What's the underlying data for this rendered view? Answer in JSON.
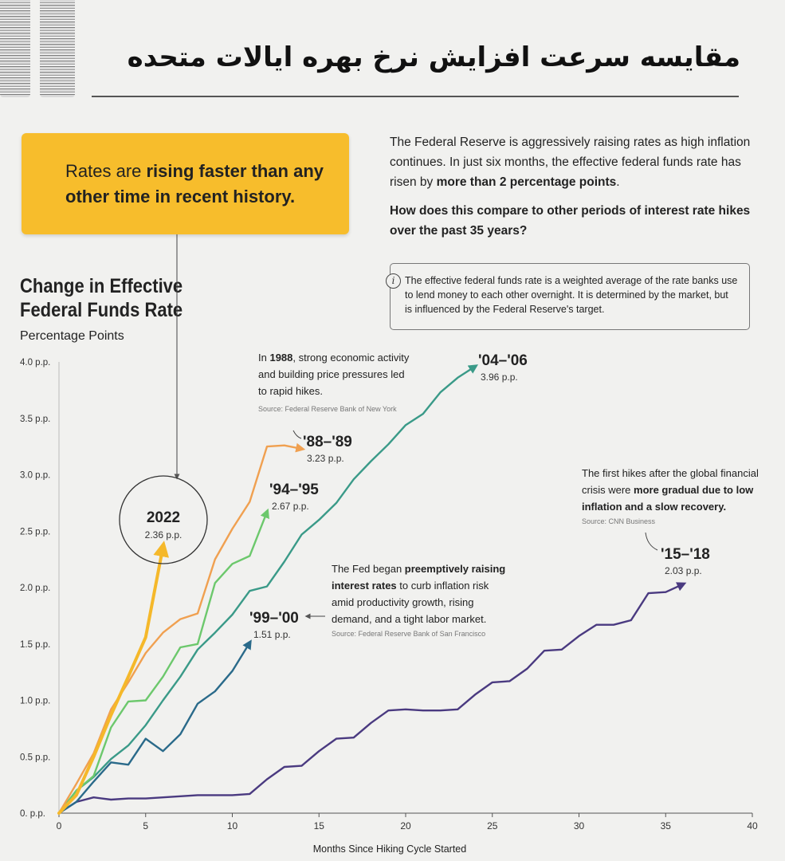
{
  "header": {
    "title_fa": "مقایسه سرعت افزایش نرخ بهره ایالات متحده"
  },
  "callout": {
    "part1": "Rates are ",
    "bold1": "rising faster than any",
    "bold2": "other time in recent history."
  },
  "intro": {
    "text1": "The Federal Reserve is aggressively raising rates as high inflation continues. In just six months, the effective federal funds rate has risen by ",
    "bold": "more than 2 percentage points",
    "text2": ".",
    "question": "How does this compare to other periods of interest rate hikes over the past 35 years?"
  },
  "info": {
    "icon": "info-icon",
    "text": "The effective federal funds rate is a weighted average of the rate banks use to lend money to each other overnight. It is determined by the market, but is influenced by the Federal Reserve's target."
  },
  "chart": {
    "title_line1": "Change in Effective",
    "title_line2": "Federal Funds Rate",
    "subtitle": "Percentage Points"
  },
  "chart_data": {
    "type": "line",
    "xlabel": "Months Since Hiking Cycle Started",
    "ylabel": "Percentage Points",
    "xlim": [
      0,
      40
    ],
    "ylim": [
      0,
      4
    ],
    "x_ticks": [
      0,
      5,
      10,
      15,
      20,
      25,
      30,
      35,
      40
    ],
    "y_ticks": [
      0,
      0.5,
      1,
      1.5,
      2,
      2.5,
      3,
      3.5,
      4
    ],
    "y_tick_labels": [
      "0. p.p.",
      "0.5 p.p.",
      "1.0 p.p.",
      "1.5 p.p.",
      "2.0 p.p.",
      "2.5 p.p.",
      "3.0 p.p.",
      "3.5 p.p.",
      "4.0 p.p."
    ],
    "grid": false,
    "series": [
      {
        "name": "'15–'18",
        "value_label": "2.03 p.p.",
        "color": "#4a3a80",
        "points": [
          [
            0,
            0
          ],
          [
            1,
            0.1
          ],
          [
            2,
            0.14
          ],
          [
            3,
            0.12
          ],
          [
            4,
            0.13
          ],
          [
            5,
            0.13
          ],
          [
            6,
            0.14
          ],
          [
            7,
            0.15
          ],
          [
            8,
            0.16
          ],
          [
            9,
            0.16
          ],
          [
            10,
            0.16
          ],
          [
            11,
            0.17
          ],
          [
            12,
            0.3
          ],
          [
            13,
            0.41
          ],
          [
            14,
            0.42
          ],
          [
            15,
            0.55
          ],
          [
            16,
            0.66
          ],
          [
            17,
            0.67
          ],
          [
            18,
            0.8
          ],
          [
            19,
            0.91
          ],
          [
            20,
            0.92
          ],
          [
            21,
            0.91
          ],
          [
            22,
            0.91
          ],
          [
            23,
            0.92
          ],
          [
            24,
            1.05
          ],
          [
            25,
            1.16
          ],
          [
            26,
            1.17
          ],
          [
            27,
            1.28
          ],
          [
            28,
            1.44
          ],
          [
            29,
            1.45
          ],
          [
            30,
            1.57
          ],
          [
            31,
            1.67
          ],
          [
            32,
            1.67
          ],
          [
            33,
            1.71
          ],
          [
            34,
            1.95
          ],
          [
            35,
            1.96
          ],
          [
            36,
            2.03
          ]
        ]
      },
      {
        "name": "'99–'00",
        "value_label": "1.51 p.p.",
        "color": "#2a6a8a",
        "points": [
          [
            0,
            0
          ],
          [
            1,
            0.1
          ],
          [
            2,
            0.28
          ],
          [
            3,
            0.45
          ],
          [
            4,
            0.43
          ],
          [
            5,
            0.66
          ],
          [
            6,
            0.55
          ],
          [
            7,
            0.7
          ],
          [
            8,
            0.97
          ],
          [
            9,
            1.08
          ],
          [
            10,
            1.26
          ],
          [
            11,
            1.51
          ]
        ]
      },
      {
        "name": "'04–'06",
        "value_label": "3.96 p.p.",
        "color": "#3a9a88",
        "points": [
          [
            0,
            0
          ],
          [
            1,
            0.2
          ],
          [
            2,
            0.32
          ],
          [
            3,
            0.48
          ],
          [
            4,
            0.6
          ],
          [
            5,
            0.78
          ],
          [
            6,
            1.0
          ],
          [
            7,
            1.21
          ],
          [
            8,
            1.45
          ],
          [
            9,
            1.6
          ],
          [
            10,
            1.76
          ],
          [
            11,
            1.97
          ],
          [
            12,
            2.01
          ],
          [
            13,
            2.23
          ],
          [
            14,
            2.47
          ],
          [
            15,
            2.6
          ],
          [
            16,
            2.75
          ],
          [
            17,
            2.96
          ],
          [
            18,
            3.12
          ],
          [
            19,
            3.27
          ],
          [
            20,
            3.44
          ],
          [
            21,
            3.54
          ],
          [
            22,
            3.73
          ],
          [
            23,
            3.86
          ],
          [
            24,
            3.96
          ]
        ]
      },
      {
        "name": "'94–'95",
        "value_label": "2.67 p.p.",
        "color": "#6cc86c",
        "points": [
          [
            0,
            0
          ],
          [
            1,
            0.2
          ],
          [
            2,
            0.33
          ],
          [
            3,
            0.76
          ],
          [
            4,
            0.99
          ],
          [
            5,
            1.0
          ],
          [
            6,
            1.21
          ],
          [
            7,
            1.47
          ],
          [
            8,
            1.5
          ],
          [
            9,
            2.04
          ],
          [
            10,
            2.21
          ],
          [
            11,
            2.28
          ],
          [
            12,
            2.67
          ]
        ]
      },
      {
        "name": "'88–'89",
        "value_label": "3.23 p.p.",
        "color": "#f0a050",
        "points": [
          [
            0,
            0
          ],
          [
            1,
            0.26
          ],
          [
            2,
            0.53
          ],
          [
            3,
            0.92
          ],
          [
            4,
            1.16
          ],
          [
            5,
            1.42
          ],
          [
            6,
            1.6
          ],
          [
            7,
            1.72
          ],
          [
            8,
            1.77
          ],
          [
            9,
            2.25
          ],
          [
            10,
            2.52
          ],
          [
            11,
            2.76
          ],
          [
            12,
            3.25
          ],
          [
            13,
            3.26
          ],
          [
            14,
            3.23
          ]
        ]
      },
      {
        "name": "2022",
        "value_label": "2.36 p.p.",
        "color": "#f5b82a",
        "points": [
          [
            0,
            0
          ],
          [
            1,
            0.16
          ],
          [
            2,
            0.5
          ],
          [
            3,
            0.87
          ],
          [
            4,
            1.21
          ],
          [
            5,
            1.56
          ],
          [
            6,
            2.36
          ]
        ]
      }
    ],
    "annotations": {
      "a1988_pre": "In ",
      "a1988_bold": "1988",
      "a1988_line1_rest": ", strong economic activity",
      "a1988_line2": "and building price pressures led",
      "a1988_line3": "to rapid hikes.",
      "a1988_source": "Source: Federal Reserve Bank of New York",
      "a9900_line1_pre": "The Fed began ",
      "a9900_line1_bold": "preemptively raising",
      "a9900_line2_bold": "interest rates",
      "a9900_line2_rest": " to curb inflation risk",
      "a9900_line3": "amid productivity growth, rising",
      "a9900_line4": "demand, and a tight labor market.",
      "a9900_source": "Source: Federal Reserve Bank of San Francisco",
      "a1518_line1": "The first hikes after the global financial",
      "a1518_line2_pre": "crisis were ",
      "a1518_line2_bold": "more gradual due to low",
      "a1518_line3_bold": "inflation and a slow recovery.",
      "a1518_source": "Source: CNN Business"
    }
  }
}
